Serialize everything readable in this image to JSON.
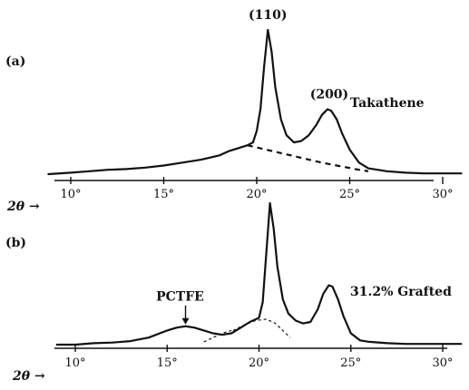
{
  "chart_data": [
    {
      "type": "line",
      "panel_label": "(a)",
      "sample_label": "Takathene",
      "xlabel": "2θ →",
      "xlim": [
        8.5,
        31.5
      ],
      "xticks": [
        10,
        15,
        20,
        25,
        30
      ],
      "xtick_labels": [
        "10°",
        "15°",
        "20°",
        "25°",
        "30°"
      ],
      "grid": false,
      "annotations": [
        {
          "text": "(110)",
          "x": 20.6
        },
        {
          "text": "(200)",
          "x": 23.9
        }
      ],
      "series": [
        {
          "style": "solid",
          "x": [
            8.8,
            10,
            11,
            12,
            13,
            14,
            15,
            16,
            17,
            18,
            18.5,
            19,
            19.5,
            19.8,
            20.0,
            20.2,
            20.4,
            20.6,
            20.8,
            21.0,
            21.3,
            21.6,
            22.0,
            22.4,
            22.8,
            23.2,
            23.5,
            23.8,
            24.0,
            24.3,
            24.6,
            25.0,
            25.5,
            26.0,
            27,
            28,
            29,
            30,
            31
          ],
          "y": [
            0.0,
            0.01,
            0.02,
            0.03,
            0.035,
            0.045,
            0.06,
            0.08,
            0.1,
            0.13,
            0.16,
            0.18,
            0.2,
            0.22,
            0.3,
            0.45,
            0.75,
            1.0,
            0.85,
            0.6,
            0.38,
            0.27,
            0.22,
            0.23,
            0.27,
            0.34,
            0.41,
            0.45,
            0.44,
            0.38,
            0.28,
            0.17,
            0.08,
            0.04,
            0.02,
            0.01,
            0.005,
            0.005,
            0.005
          ]
        },
        {
          "style": "dashed",
          "x": [
            19.5,
            20.5,
            21.5,
            22.5,
            23.5,
            24.5,
            25.5,
            26.0
          ],
          "y": [
            0.2,
            0.17,
            0.14,
            0.11,
            0.08,
            0.055,
            0.03,
            0.02
          ]
        }
      ]
    },
    {
      "type": "line",
      "panel_label": "(b)",
      "sample_label": "31.2% Grafted",
      "xlabel": "2θ →",
      "xlim": [
        8.5,
        31.5
      ],
      "xticks": [
        10,
        15,
        20,
        25,
        30
      ],
      "xtick_labels": [
        "10°",
        "15°",
        "20°",
        "25°",
        "30°"
      ],
      "grid": false,
      "annotations": [
        {
          "text": "PCTFE",
          "x": 16.0
        }
      ],
      "series": [
        {
          "style": "solid",
          "x": [
            9.0,
            10,
            11,
            12,
            13,
            14,
            15,
            15.5,
            16.0,
            16.5,
            17.0,
            17.5,
            18.0,
            18.5,
            19.0,
            19.5,
            20.0,
            20.2,
            20.4,
            20.6,
            20.8,
            21.0,
            21.3,
            21.6,
            22.0,
            22.4,
            22.8,
            23.2,
            23.5,
            23.8,
            24.0,
            24.3,
            24.6,
            25.0,
            25.5,
            26.0,
            27,
            28,
            29,
            30,
            31
          ],
          "y": [
            0.0,
            0.0,
            0.01,
            0.015,
            0.025,
            0.05,
            0.1,
            0.12,
            0.13,
            0.12,
            0.1,
            0.08,
            0.07,
            0.08,
            0.12,
            0.16,
            0.19,
            0.3,
            0.65,
            1.0,
            0.82,
            0.55,
            0.32,
            0.22,
            0.17,
            0.15,
            0.16,
            0.25,
            0.36,
            0.42,
            0.41,
            0.32,
            0.2,
            0.08,
            0.03,
            0.02,
            0.01,
            0.005,
            0.005,
            0.005,
            0.005
          ]
        },
        {
          "style": "dotted",
          "x": [
            18.6,
            19.2,
            19.8,
            20.4,
            20.9,
            21.3,
            21.7
          ],
          "y": [
            0.1,
            0.14,
            0.17,
            0.18,
            0.15,
            0.1,
            0.05
          ]
        },
        {
          "style": "dotted",
          "x": [
            17.0,
            17.5,
            18.0,
            18.5
          ],
          "y": [
            0.02,
            0.05,
            0.08,
            0.1
          ]
        }
      ]
    }
  ]
}
